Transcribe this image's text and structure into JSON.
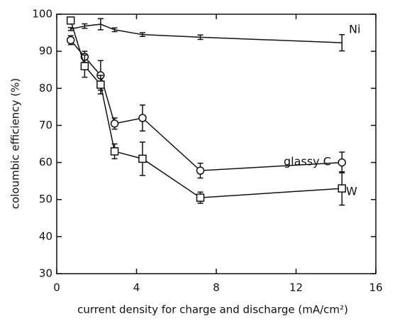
{
  "chart_data": {
    "type": "line",
    "x_label": "current density for charge and discharge (mA/cm²)",
    "y_label": "coloumbic efficiency (%)",
    "x": [
      0.7,
      1.4,
      2.2,
      2.9,
      4.3,
      7.2,
      14.3
    ],
    "series": [
      {
        "name": "Ni",
        "color": "#111111",
        "marker": "none",
        "values": [
          96,
          96.8,
          97.3,
          95.8,
          94.5,
          93.8,
          92.3
        ],
        "errors": [
          0.4,
          0.6,
          1.5,
          0.5,
          0.5,
          0.6,
          2.2
        ]
      },
      {
        "name": "glassy C",
        "color": "#111111",
        "marker": "circle",
        "values": [
          93,
          88.5,
          83.5,
          70.5,
          72,
          57.8,
          60
        ],
        "errors": [
          1.2,
          1.5,
          4,
          1.5,
          3.5,
          2,
          2.8
        ]
      },
      {
        "name": "W",
        "color": "#111111",
        "marker": "square",
        "values": [
          98.3,
          86,
          81,
          63,
          61,
          50.5,
          53
        ],
        "errors": [
          0.5,
          3,
          2.5,
          2,
          4.5,
          1.5,
          4.5
        ]
      }
    ],
    "xlim": [
      0,
      16
    ],
    "xticks": [
      0,
      4,
      8,
      12,
      16
    ],
    "ylim": [
      30,
      100
    ],
    "yticks": [
      30,
      40,
      50,
      60,
      70,
      80,
      90,
      100
    ],
    "grid": false
  }
}
